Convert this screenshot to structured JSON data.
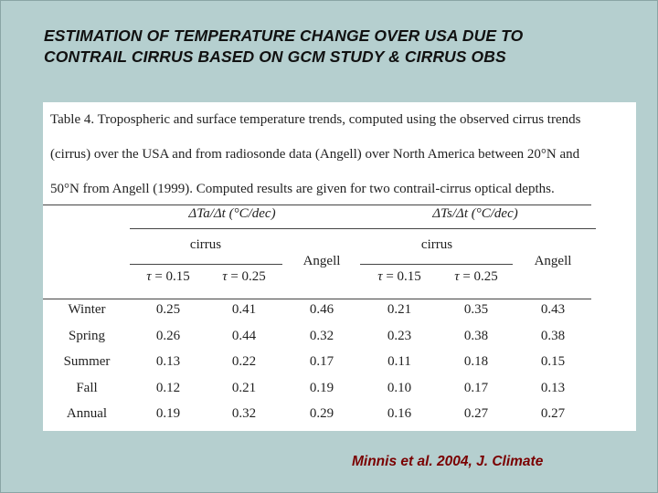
{
  "slide": {
    "title_line1": "ESTIMATION OF TEMPERATURE CHANGE OVER USA DUE TO",
    "title_line2": "CONTRAIL CIRRUS BASED ON GCM STUDY & CIRRUS OBS",
    "citation": "Minnis et al. 2004, J. Climate"
  },
  "table": {
    "caption_line1": "Table 4. Tropospheric and surface temperature trends, computed using the observed cirrus trends",
    "caption_line2": "(cirrus) over the USA and from radiosonde data (Angell) over North America between 20°N and",
    "caption_line3": "50°N from Angell (1999). Computed results are given for two contrail-cirrus optical depths.",
    "group1_header": "ΔTa/Δt (°C/dec)",
    "group2_header": "ΔTs/Δt (°C/dec)",
    "subgroup_cirrus": "cirrus",
    "col_angell": "Angell",
    "tau1": "τ = 0.15",
    "tau2": "τ = 0.25",
    "rows": [
      {
        "label": "Winter",
        "values": [
          "0.25",
          "0.41",
          "0.46",
          "0.21",
          "0.35",
          "0.43"
        ]
      },
      {
        "label": "Spring",
        "values": [
          "0.26",
          "0.44",
          "0.32",
          "0.23",
          "0.38",
          "0.38"
        ]
      },
      {
        "label": "Summer",
        "values": [
          "0.13",
          "0.22",
          "0.17",
          "0.11",
          "0.18",
          "0.15"
        ]
      },
      {
        "label": "Fall",
        "values": [
          "0.12",
          "0.21",
          "0.19",
          "0.10",
          "0.17",
          "0.13"
        ]
      },
      {
        "label": "Annual",
        "values": [
          "0.19",
          "0.32",
          "0.29",
          "0.16",
          "0.27",
          "0.27"
        ]
      }
    ]
  }
}
